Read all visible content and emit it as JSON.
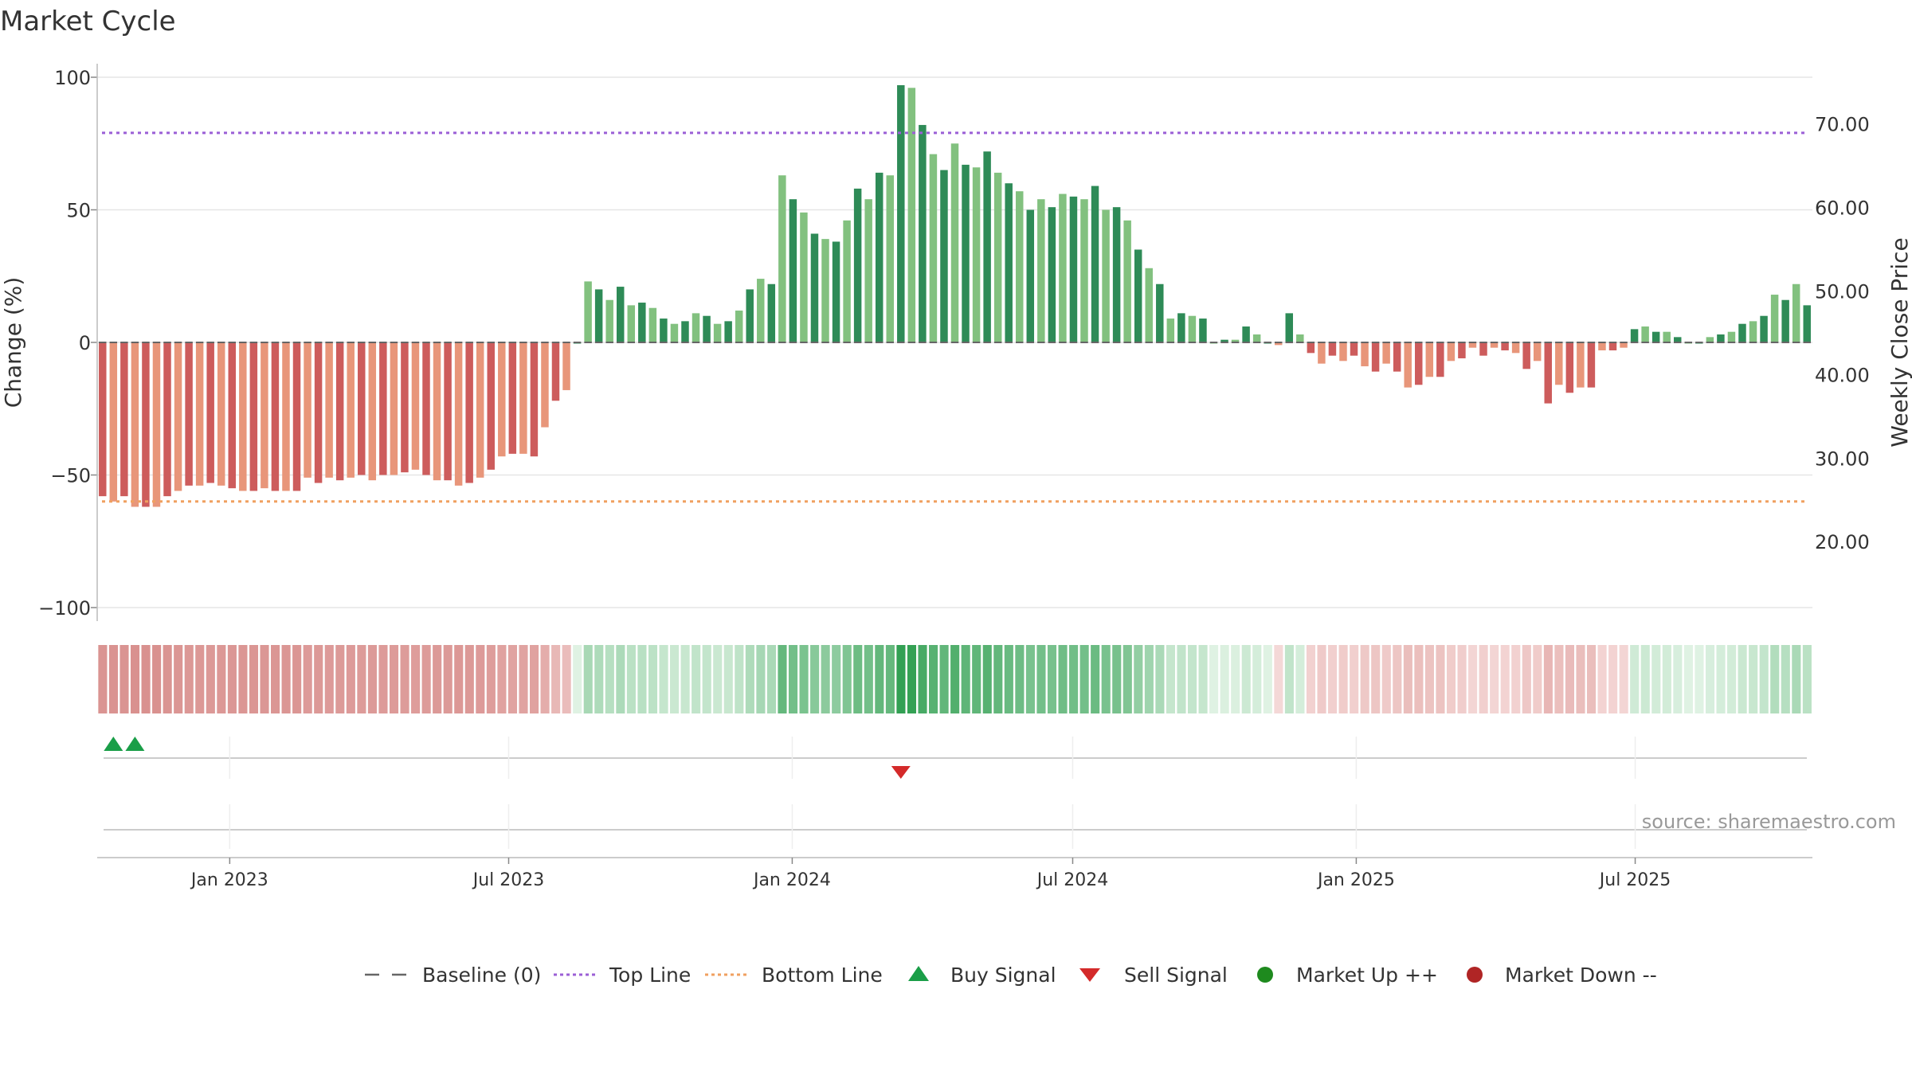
{
  "title": "Market Cycle",
  "source": "source: sharemaestro.com",
  "colors": {
    "up_dark": "#2e8b57",
    "up_light": "#82c17f",
    "down_dark": "#cd5c5c",
    "down_light": "#e8967a",
    "top_line": "#9b5fd6",
    "bottom_line": "#f0a060",
    "baseline": "#666666",
    "buy": "#1a9e48",
    "sell": "#d42a2a",
    "market_up": "#1e8a1e",
    "market_down": "#b02525",
    "heat_up_strong": "#2e9e4f",
    "heat_down_strong": "#c0504d"
  },
  "chart_data": {
    "type": "bar",
    "title": "Market Cycle",
    "ylabel": "Change (%)",
    "ylabel_right": "Weekly Close Price",
    "ylim": [
      -100,
      100
    ],
    "ylim_right": [
      12.1,
      75.6
    ],
    "yticks": [
      "100",
      "50",
      "0",
      "−50",
      "−100"
    ],
    "yticks_right": [
      "70.00",
      "60.00",
      "50.00",
      "40.00",
      "30.00",
      "20.00"
    ],
    "top_line": 79,
    "bottom_line": -60,
    "x_start": "2022-10-07",
    "x_step_days": 7,
    "x_ticks": [
      {
        "label": "Jan 2023",
        "date": "2023-01-01"
      },
      {
        "label": "Jul 2023",
        "date": "2023-07-01"
      },
      {
        "label": "Jan 2024",
        "date": "2024-01-01"
      },
      {
        "label": "Jul 2024",
        "date": "2024-07-01"
      },
      {
        "label": "Jan 2025",
        "date": "2025-01-01"
      },
      {
        "label": "Jul 2025",
        "date": "2025-07-01"
      }
    ],
    "values": [
      -58,
      -60,
      -58,
      -62,
      -62,
      -62,
      -58,
      -56,
      -54,
      -54,
      -53,
      -54,
      -55,
      -56,
      -56,
      -55,
      -56,
      -56,
      -56,
      -51,
      -53,
      -51,
      -52,
      -51,
      -50,
      -52,
      -50,
      -50,
      -49,
      -48,
      -50,
      -52,
      -52,
      -54,
      -53,
      -51,
      -48,
      -43,
      -42,
      -42,
      -43,
      -32,
      -22,
      -18,
      0,
      23,
      20,
      16,
      21,
      14,
      15,
      13,
      9,
      7,
      8,
      11,
      10,
      7,
      8,
      12,
      20,
      24,
      22,
      63,
      54,
      49,
      41,
      39,
      38,
      46,
      58,
      54,
      64,
      63,
      97,
      96,
      82,
      71,
      65,
      75,
      67,
      66,
      72,
      64,
      60,
      57,
      50,
      54,
      51,
      56,
      55,
      54,
      59,
      50,
      51,
      46,
      35,
      28,
      22,
      9,
      11,
      10,
      9,
      0,
      1,
      1,
      6,
      3,
      0,
      -1,
      11,
      3,
      -4,
      -8,
      -5,
      -7,
      -5,
      -9,
      -11,
      -8,
      -11,
      -17,
      -16,
      -13,
      -13,
      -7,
      -6,
      -2,
      -5,
      -2,
      -3,
      -4,
      -10,
      -7,
      -23,
      -16,
      -19,
      -17,
      -17,
      -3,
      -3,
      -2,
      5,
      6,
      4,
      4,
      2,
      0,
      0,
      2,
      3,
      4,
      7,
      8,
      10,
      18,
      16,
      22,
      14
    ],
    "series": [
      {
        "name": "Baseline (0)"
      },
      {
        "name": "Top Line"
      },
      {
        "name": "Bottom Line"
      }
    ],
    "buy_signals": [
      "2022-10-14",
      "2022-10-28"
    ],
    "sell_signals": [
      "2024-03-08"
    ],
    "heat_strip": "color-coded by weekly change value",
    "legend": {
      "position": "bottom-center",
      "items": [
        {
          "label": "Baseline (0)",
          "symbol": "dash"
        },
        {
          "label": "Top Line",
          "symbol": "dot-purple"
        },
        {
          "label": "Bottom Line",
          "symbol": "dot-orange"
        },
        {
          "label": "Buy Signal",
          "symbol": "triangle-up"
        },
        {
          "label": "Sell Signal",
          "symbol": "triangle-down"
        },
        {
          "label": "Market Up ++",
          "symbol": "circle-green"
        },
        {
          "label": "Market Down --",
          "symbol": "circle-red"
        }
      ]
    },
    "grid": true
  }
}
